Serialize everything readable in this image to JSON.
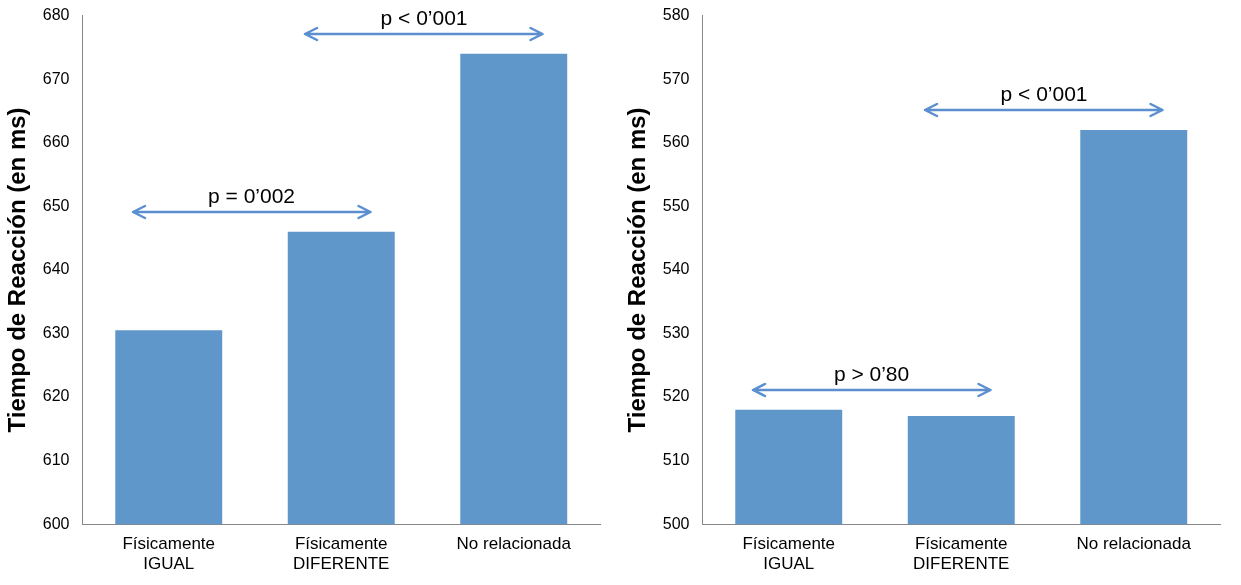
{
  "chart_data": [
    {
      "type": "bar",
      "ylabel": "Tiempo de Reacción (en ms)",
      "categories": [
        "Físicamente\nIGUAL",
        "Físicamente\nDIFERENTE",
        "No relacionada"
      ],
      "values": [
        630.5,
        646,
        674
      ],
      "color": "#6097cb",
      "ylim": [
        600,
        680
      ],
      "yticks": [
        600,
        610,
        620,
        630,
        640,
        650,
        660,
        670,
        680
      ],
      "grid": false,
      "legend": false,
      "annotations": [
        "p = 0’002",
        "p < 0’001"
      ]
    },
    {
      "type": "bar",
      "ylabel": "Tiempo de Reacción (en ms)",
      "categories": [
        "Físicamente\nIGUAL",
        "Físicamente\nDIFERENTE",
        "No relacionada"
      ],
      "values": [
        518,
        517,
        562
      ],
      "color": "#6097cb",
      "ylim": [
        500,
        580
      ],
      "yticks": [
        500,
        510,
        520,
        530,
        540,
        550,
        560,
        570,
        580
      ],
      "grid": false,
      "legend": false,
      "annotations": [
        "p > 0’80",
        "p < 0’001"
      ]
    }
  ]
}
